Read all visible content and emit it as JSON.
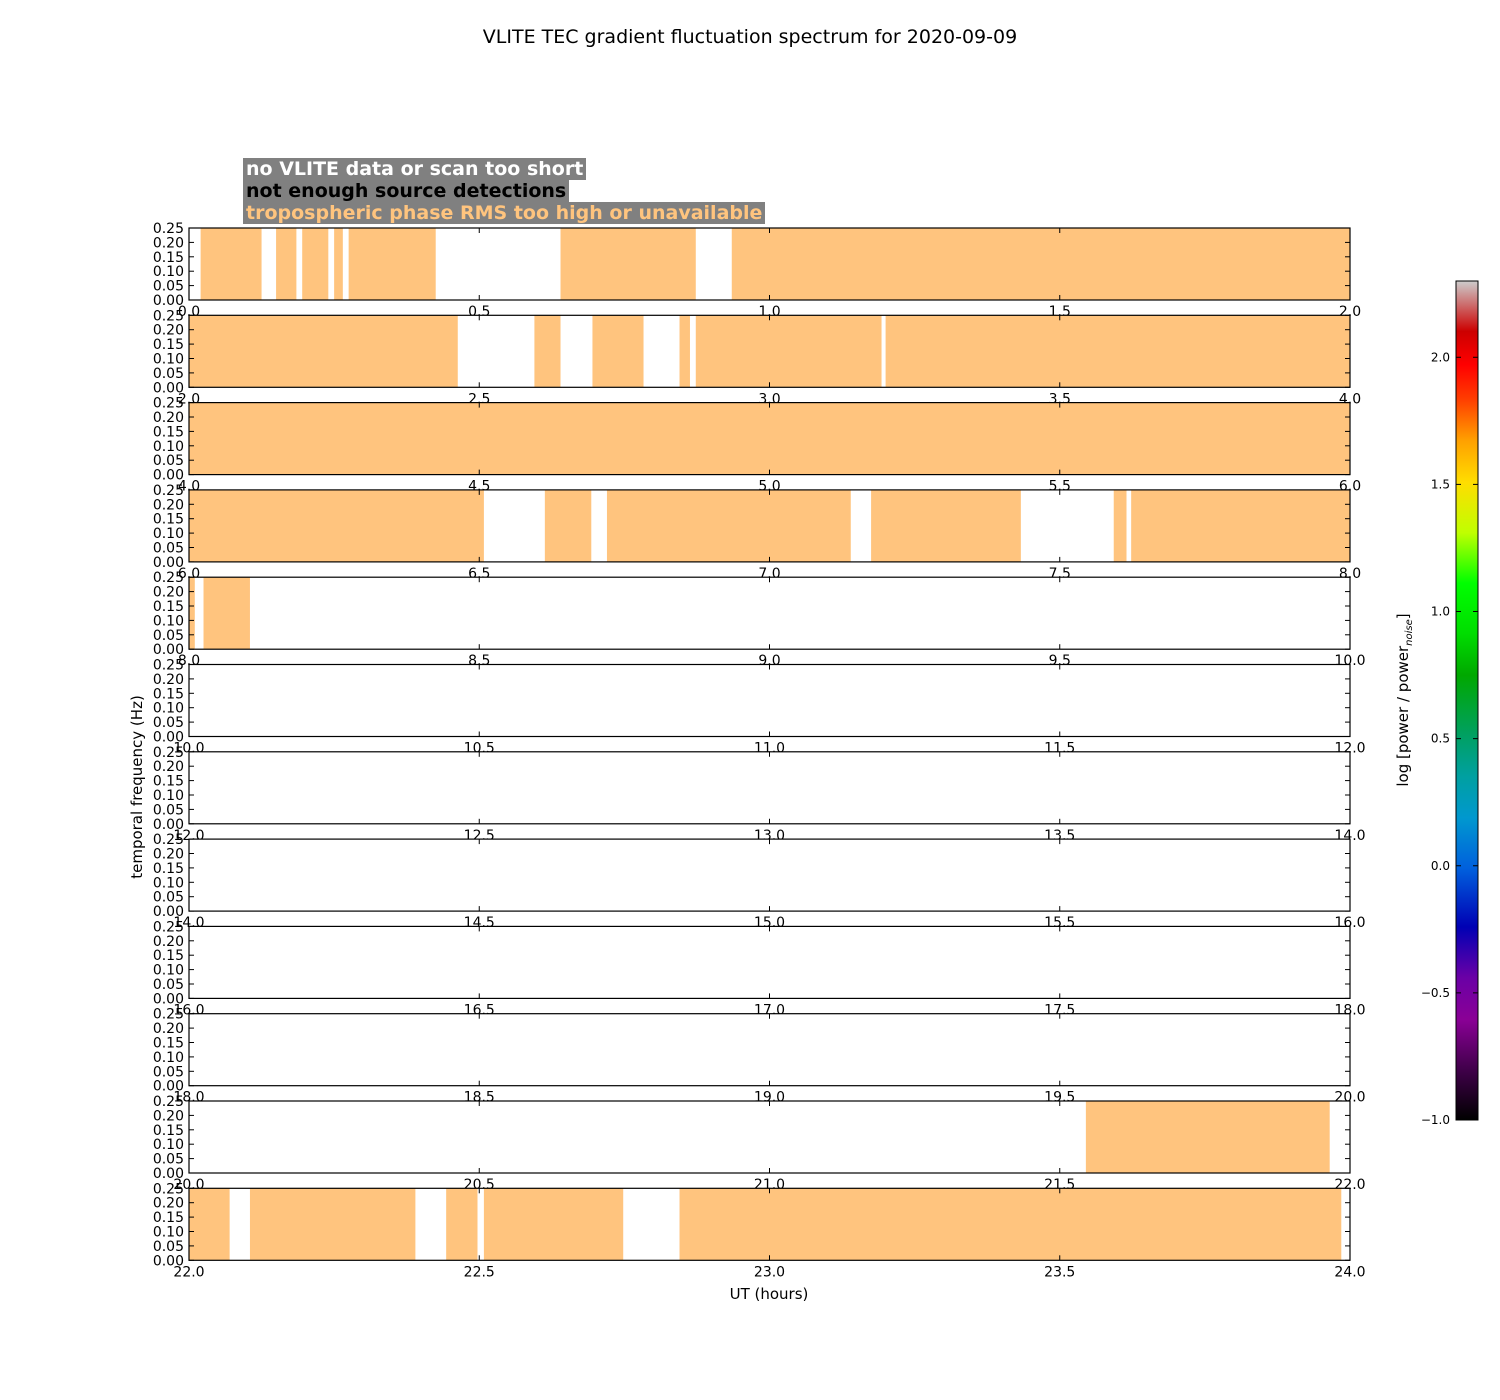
{
  "chart_data": {
    "type": "heatmap",
    "title": "VLITE TEC gradient fluctuation spectrum for 2020-09-09",
    "xlabel": "UT (hours)",
    "ylabel": "temporal frequency (Hz)",
    "ylim": [
      0,
      0.25
    ],
    "yticks": [
      "0.00",
      "0.05",
      "0.10",
      "0.15",
      "0.20",
      "0.25"
    ],
    "colors": {
      "flag_tropo": "#ffc47e",
      "legend_bg": "#808080"
    },
    "legend": [
      {
        "text": "no VLITE data or scan too short",
        "color": "#ffffff"
      },
      {
        "text": "not enough source detections",
        "color": "#000000"
      },
      {
        "text": "tropospheric phase RMS too high or unavailable",
        "color": "#ffc47e"
      }
    ],
    "colorbar": {
      "label_main": "log [power / power",
      "label_sub": "noise",
      "label_end": "]",
      "range": [
        -1.0,
        2.3
      ],
      "ticks": [
        "−1.0",
        "−0.5",
        "0.0",
        "0.5",
        "1.0",
        "1.5",
        "2.0"
      ],
      "tick_values": [
        -1.0,
        -0.5,
        0.0,
        0.5,
        1.0,
        1.5,
        2.0
      ]
    },
    "panels": [
      {
        "xlim": [
          0,
          2
        ],
        "xticks": [
          "0.0",
          "0.5",
          "1.0",
          "1.5",
          "2.0"
        ],
        "flag_tropo": [
          [
            0.02,
            0.125
          ],
          [
            0.15,
            0.185
          ],
          [
            0.195,
            0.24
          ],
          [
            0.25,
            0.265
          ],
          [
            0.275,
            0.425
          ],
          [
            0.64,
            0.873
          ],
          [
            0.935,
            2.0
          ]
        ]
      },
      {
        "xlim": [
          2,
          4
        ],
        "xticks": [
          "2.0",
          "2.5",
          "3.0",
          "3.5",
          "4.0"
        ],
        "flag_tropo": [
          [
            2.0,
            2.463
          ],
          [
            2.595,
            2.64
          ],
          [
            2.695,
            2.783
          ],
          [
            2.845,
            2.863
          ],
          [
            2.873,
            3.193
          ],
          [
            3.2,
            4.0
          ]
        ]
      },
      {
        "xlim": [
          4,
          6
        ],
        "xticks": [
          "4.0",
          "4.5",
          "5.0",
          "5.5",
          "6.0"
        ],
        "flag_tropo": [
          [
            4.0,
            6.0
          ]
        ]
      },
      {
        "xlim": [
          6,
          8
        ],
        "xticks": [
          "6.0",
          "6.5",
          "7.0",
          "7.5",
          "8.0"
        ],
        "flag_tropo": [
          [
            6.0,
            6.508
          ],
          [
            6.613,
            6.693
          ],
          [
            6.72,
            7.14
          ],
          [
            7.175,
            7.433
          ],
          [
            7.593,
            7.615
          ],
          [
            7.623,
            8.0
          ]
        ]
      },
      {
        "xlim": [
          8,
          10
        ],
        "xticks": [
          "8.0",
          "8.5",
          "9.0",
          "9.5",
          "10.0"
        ],
        "flag_tropo": [
          [
            8.0,
            8.01
          ],
          [
            8.025,
            8.105
          ]
        ]
      },
      {
        "xlim": [
          10,
          12
        ],
        "xticks": [
          "10.0",
          "10.5",
          "11.0",
          "11.5",
          "12.0"
        ],
        "flag_tropo": []
      },
      {
        "xlim": [
          12,
          14
        ],
        "xticks": [
          "12.0",
          "12.5",
          "13.0",
          "13.5",
          "14.0"
        ],
        "flag_tropo": []
      },
      {
        "xlim": [
          14,
          16
        ],
        "xticks": [
          "14.0",
          "14.5",
          "15.0",
          "15.5",
          "16.0"
        ],
        "flag_tropo": []
      },
      {
        "xlim": [
          16,
          18
        ],
        "xticks": [
          "16.0",
          "16.5",
          "17.0",
          "17.5",
          "18.0"
        ],
        "flag_tropo": []
      },
      {
        "xlim": [
          18,
          20
        ],
        "xticks": [
          "18.0",
          "18.5",
          "19.0",
          "19.5",
          "20.0"
        ],
        "flag_tropo": []
      },
      {
        "xlim": [
          20,
          22
        ],
        "xticks": [
          "20.0",
          "20.5",
          "21.0",
          "21.5",
          "22.0"
        ],
        "flag_tropo": [
          [
            21.545,
            21.965
          ]
        ]
      },
      {
        "xlim": [
          22,
          24
        ],
        "xticks": [
          "22.0",
          "22.5",
          "23.0",
          "23.5",
          "24.0"
        ],
        "flag_tropo": [
          [
            22.0,
            22.07
          ],
          [
            22.105,
            22.39
          ],
          [
            22.443,
            22.497
          ],
          [
            22.508,
            22.748
          ],
          [
            22.845,
            23.985
          ]
        ]
      }
    ]
  }
}
